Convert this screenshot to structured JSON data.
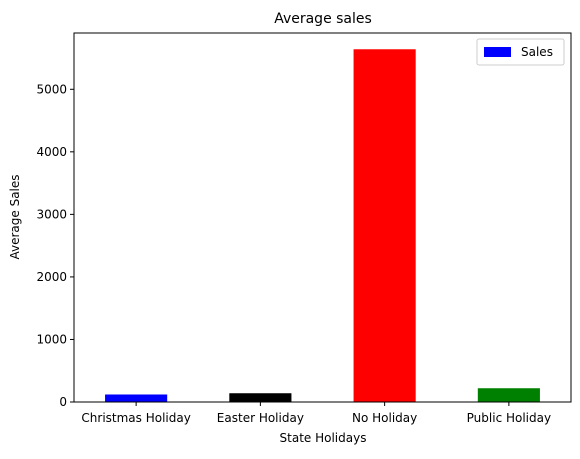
{
  "chart_data": {
    "type": "bar",
    "title": "Average sales",
    "xlabel": "State Holidays",
    "ylabel": "Average Sales",
    "categories": [
      "Christmas Holiday",
      "Easter Holiday",
      "No Holiday",
      "Public Holiday"
    ],
    "series": [
      {
        "name": "Sales",
        "values": [
          120,
          140,
          5640,
          220
        ]
      }
    ],
    "bar_colors": [
      "#0000ff",
      "#000000",
      "#ff0000",
      "#008000"
    ],
    "legend": {
      "position": "top-right",
      "entries": [
        {
          "label": "Sales",
          "color": "#0000ff"
        }
      ]
    },
    "ylim": [
      0,
      5900
    ],
    "yticks": [
      0,
      1000,
      2000,
      3000,
      4000,
      5000
    ],
    "ytick_labels": [
      "0",
      "1000",
      "2000",
      "3000",
      "4000",
      "5000"
    ],
    "grid": false
  }
}
